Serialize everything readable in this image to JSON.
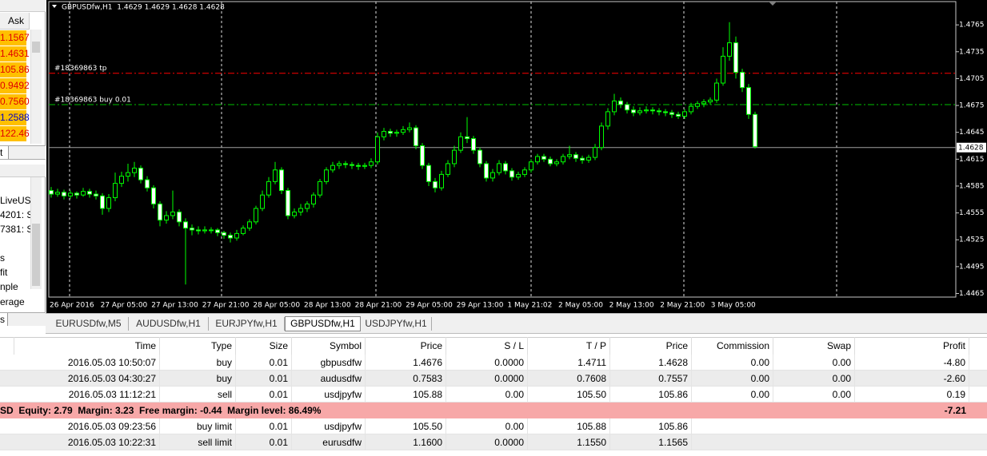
{
  "market_watch": {
    "header": "Ask",
    "asks": [
      "1.1567",
      "1.4631",
      "105.86",
      "0.9492",
      "0.7560",
      "1.2588",
      "122.46"
    ],
    "ask_colors": [
      "#e00000",
      "#e00000",
      "#e00000",
      "#e00000",
      "#e00000",
      "#0000c8",
      "#e00000"
    ]
  },
  "trade_tab": "t",
  "navigator": {
    "items": [
      "LiveUS",
      "4201: S",
      "7381: S",
      "s",
      "fit",
      "nple",
      "erage"
    ],
    "footer": "s"
  },
  "chart_data": {
    "type": "candlestick",
    "title": "GBPUSDfw,H1  1.4629 1.4629 1.4628 1.4628",
    "up_color": "#000000",
    "down_color": "#ffffff",
    "wick_color": "#00ff00",
    "ylim": [
      1.4461,
      1.4791
    ],
    "yticks": [
      1.4765,
      1.4735,
      1.4705,
      1.4675,
      1.4645,
      1.4615,
      1.4585,
      1.4555,
      1.4525,
      1.4495,
      1.4465
    ],
    "x_labels": [
      "26 Apr 2016",
      "27 Apr 05:00",
      "27 Apr 13:00",
      "27 Apr 21:00",
      "28 Apr 05:00",
      "28 Apr 13:00",
      "28 Apr 21:00",
      "29 Apr 05:00",
      "29 Apr 13:00",
      "1 May 21:02",
      "2 May 05:00",
      "2 May 13:00",
      "2 May 21:00",
      "3 May 05:00"
    ],
    "bid": 1.4628,
    "levels": [
      {
        "label": "#18369863 tp",
        "value": 1.4711,
        "color": "#ff0000"
      },
      {
        "label": "#18369863 buy 0.01",
        "value": 1.4676,
        "color": "#00c000"
      }
    ],
    "ohlc": [
      [
        1.458,
        1.4584,
        1.4572,
        1.4576
      ],
      [
        1.4576,
        1.4582,
        1.4573,
        1.4578
      ],
      [
        1.4578,
        1.4581,
        1.457,
        1.4574
      ],
      [
        1.4574,
        1.458,
        1.4571,
        1.4577
      ],
      [
        1.4577,
        1.4579,
        1.4571,
        1.4575
      ],
      [
        1.4575,
        1.4583,
        1.4573,
        1.4579
      ],
      [
        1.4579,
        1.4582,
        1.4572,
        1.4576
      ],
      [
        1.4576,
        1.458,
        1.457,
        1.4574
      ],
      [
        1.4574,
        1.4577,
        1.4553,
        1.456
      ],
      [
        1.456,
        1.4576,
        1.4556,
        1.4572
      ],
      [
        1.4572,
        1.46,
        1.4568,
        1.4588
      ],
      [
        1.4588,
        1.4601,
        1.4584,
        1.4596
      ],
      [
        1.4596,
        1.461,
        1.459,
        1.46
      ],
      [
        1.46,
        1.4612,
        1.4595,
        1.4605
      ],
      [
        1.4605,
        1.4608,
        1.4588,
        1.4592
      ],
      [
        1.4592,
        1.4596,
        1.4579,
        1.4583
      ],
      [
        1.4583,
        1.4586,
        1.456,
        1.4565
      ],
      [
        1.4565,
        1.4568,
        1.454,
        1.4547
      ],
      [
        1.4547,
        1.4557,
        1.4543,
        1.4552
      ],
      [
        1.4552,
        1.458,
        1.4548,
        1.4556
      ],
      [
        1.4556,
        1.4559,
        1.454,
        1.4545
      ],
      [
        1.4545,
        1.4549,
        1.4475,
        1.4538
      ],
      [
        1.4538,
        1.4542,
        1.453,
        1.4536
      ],
      [
        1.4536,
        1.454,
        1.4531,
        1.4535
      ],
      [
        1.4535,
        1.454,
        1.4532,
        1.4536
      ],
      [
        1.4536,
        1.4539,
        1.4532,
        1.4536
      ],
      [
        1.4536,
        1.4538,
        1.4529,
        1.4533
      ],
      [
        1.4533,
        1.4535,
        1.4526,
        1.453
      ],
      [
        1.453,
        1.4533,
        1.4522,
        1.4527
      ],
      [
        1.4527,
        1.4536,
        1.4524,
        1.4532
      ],
      [
        1.4532,
        1.4541,
        1.453,
        1.4538
      ],
      [
        1.4538,
        1.4548,
        1.4535,
        1.4545
      ],
      [
        1.4545,
        1.4563,
        1.4542,
        1.456
      ],
      [
        1.456,
        1.458,
        1.4557,
        1.4575
      ],
      [
        1.4575,
        1.4595,
        1.4572,
        1.459
      ],
      [
        1.459,
        1.4612,
        1.4587,
        1.4603
      ],
      [
        1.4603,
        1.4606,
        1.4576,
        1.458
      ],
      [
        1.458,
        1.4583,
        1.4548,
        1.4552
      ],
      [
        1.4552,
        1.456,
        1.4549,
        1.4556
      ],
      [
        1.4556,
        1.4565,
        1.4552,
        1.456
      ],
      [
        1.456,
        1.4568,
        1.4556,
        1.4565
      ],
      [
        1.4565,
        1.4578,
        1.4561,
        1.4575
      ],
      [
        1.4575,
        1.4593,
        1.4572,
        1.459
      ],
      [
        1.459,
        1.4606,
        1.4587,
        1.4603
      ],
      [
        1.4603,
        1.4612,
        1.46,
        1.4608
      ],
      [
        1.4608,
        1.4613,
        1.4604,
        1.461
      ],
      [
        1.461,
        1.4613,
        1.4605,
        1.4609
      ],
      [
        1.4609,
        1.4612,
        1.4604,
        1.4608
      ],
      [
        1.4608,
        1.4611,
        1.4603,
        1.4607
      ],
      [
        1.4607,
        1.4611,
        1.4604,
        1.4608
      ],
      [
        1.4608,
        1.4616,
        1.4605,
        1.4612
      ],
      [
        1.4612,
        1.4645,
        1.4609,
        1.464
      ],
      [
        1.464,
        1.465,
        1.4636,
        1.4646
      ],
      [
        1.4646,
        1.4649,
        1.464,
        1.4644
      ],
      [
        1.4644,
        1.4648,
        1.464,
        1.4645
      ],
      [
        1.4645,
        1.4652,
        1.4642,
        1.4648
      ],
      [
        1.4648,
        1.4656,
        1.4645,
        1.465
      ],
      [
        1.465,
        1.4653,
        1.4626,
        1.463
      ],
      [
        1.463,
        1.4633,
        1.4604,
        1.4608
      ],
      [
        1.4608,
        1.4611,
        1.4585,
        1.459
      ],
      [
        1.459,
        1.4594,
        1.4578,
        1.4583
      ],
      [
        1.4583,
        1.4602,
        1.458,
        1.4598
      ],
      [
        1.4598,
        1.4614,
        1.4595,
        1.461
      ],
      [
        1.461,
        1.463,
        1.4606,
        1.4625
      ],
      [
        1.4625,
        1.4645,
        1.4622,
        1.464
      ],
      [
        1.464,
        1.4662,
        1.4633,
        1.4638
      ],
      [
        1.4638,
        1.4641,
        1.4621,
        1.4625
      ],
      [
        1.4625,
        1.4628,
        1.4606,
        1.461
      ],
      [
        1.461,
        1.4613,
        1.459,
        1.4594
      ],
      [
        1.4594,
        1.4604,
        1.459,
        1.46
      ],
      [
        1.46,
        1.4614,
        1.4597,
        1.461
      ],
      [
        1.461,
        1.4613,
        1.4598,
        1.4602
      ],
      [
        1.4602,
        1.4605,
        1.4591,
        1.4595
      ],
      [
        1.4595,
        1.4601,
        1.4592,
        1.4598
      ],
      [
        1.4598,
        1.4606,
        1.4595,
        1.4603
      ],
      [
        1.4603,
        1.4615,
        1.46,
        1.4612
      ],
      [
        1.4612,
        1.4621,
        1.4609,
        1.4618
      ],
      [
        1.4618,
        1.4621,
        1.4612,
        1.4615
      ],
      [
        1.4615,
        1.4618,
        1.4607,
        1.461
      ],
      [
        1.461,
        1.4615,
        1.4607,
        1.4612
      ],
      [
        1.4612,
        1.4621,
        1.4609,
        1.4618
      ],
      [
        1.4618,
        1.463,
        1.4615,
        1.462
      ],
      [
        1.462,
        1.4623,
        1.4612,
        1.4616
      ],
      [
        1.4616,
        1.4619,
        1.461,
        1.4614
      ],
      [
        1.4614,
        1.462,
        1.4611,
        1.4617
      ],
      [
        1.4617,
        1.4632,
        1.4614,
        1.4628
      ],
      [
        1.4628,
        1.4656,
        1.4625,
        1.4652
      ],
      [
        1.4652,
        1.4672,
        1.4648,
        1.4668
      ],
      [
        1.4668,
        1.4688,
        1.4664,
        1.468
      ],
      [
        1.468,
        1.4684,
        1.4672,
        1.4676
      ],
      [
        1.4676,
        1.4679,
        1.4666,
        1.467
      ],
      [
        1.467,
        1.4674,
        1.4663,
        1.4667
      ],
      [
        1.4667,
        1.4673,
        1.4664,
        1.4669
      ],
      [
        1.4669,
        1.4674,
        1.4666,
        1.467
      ],
      [
        1.467,
        1.4673,
        1.4665,
        1.4669
      ],
      [
        1.4669,
        1.4672,
        1.4664,
        1.4668
      ],
      [
        1.4668,
        1.4671,
        1.4663,
        1.4667
      ],
      [
        1.4667,
        1.467,
        1.4661,
        1.4665
      ],
      [
        1.4665,
        1.4668,
        1.466,
        1.4663
      ],
      [
        1.4663,
        1.4671,
        1.466,
        1.4668
      ],
      [
        1.4668,
        1.4678,
        1.4665,
        1.4674
      ],
      [
        1.4674,
        1.468,
        1.4671,
        1.4677
      ],
      [
        1.4677,
        1.4682,
        1.4673,
        1.4679
      ],
      [
        1.4679,
        1.4684,
        1.4676,
        1.4681
      ],
      [
        1.4681,
        1.4705,
        1.4678,
        1.47
      ],
      [
        1.47,
        1.474,
        1.4697,
        1.473
      ],
      [
        1.473,
        1.4768,
        1.4725,
        1.4745
      ],
      [
        1.4745,
        1.4752,
        1.4705,
        1.4712
      ],
      [
        1.4712,
        1.4716,
        1.469,
        1.4695
      ],
      [
        1.4695,
        1.4699,
        1.466,
        1.4665
      ],
      [
        1.4665,
        1.4668,
        1.4627,
        1.4629
      ]
    ]
  },
  "chart_tabs": {
    "tabs": [
      "EURUSDfw,M5",
      "AUDUSDfw,H1",
      "EURJPYfw,H1",
      "GBPUSDfw,H1",
      "USDJPYfw,H1"
    ],
    "active": 3
  },
  "terminal": {
    "columns": [
      "Time",
      "Type",
      "Size",
      "Symbol",
      "Price",
      "S / L",
      "T / P",
      "Price",
      "Commission",
      "Swap",
      "Profit"
    ],
    "positions": [
      [
        "2016.05.03 10:50:07",
        "buy",
        "0.01",
        "gbpusdfw",
        "1.4676",
        "0.0000",
        "1.4711",
        "1.4628",
        "0.00",
        "0.00",
        "-4.80"
      ],
      [
        "2016.05.03 04:30:27",
        "buy",
        "0.01",
        "audusdfw",
        "0.7583",
        "0.0000",
        "0.7608",
        "0.7557",
        "0.00",
        "0.00",
        "-2.60"
      ],
      [
        "2016.05.03 11:12:21",
        "sell",
        "0.01",
        "usdjpyfw",
        "105.88",
        "0.00",
        "105.50",
        "105.86",
        "0.00",
        "0.00",
        "0.19"
      ]
    ],
    "summary": {
      "text": "SD  Equity: 2.79  Margin: 3.23  Free margin: -0.44  Margin level: 86.49%",
      "profit": "-7.21"
    },
    "orders": [
      [
        "2016.05.03 09:23:56",
        "buy limit",
        "0.01",
        "usdjpyfw",
        "105.50",
        "0.00",
        "105.88",
        "105.86"
      ],
      [
        "2016.05.03 10:22:31",
        "sell limit",
        "0.01",
        "eurusdfw",
        "1.1600",
        "0.0000",
        "1.1550",
        "1.1565"
      ]
    ]
  }
}
